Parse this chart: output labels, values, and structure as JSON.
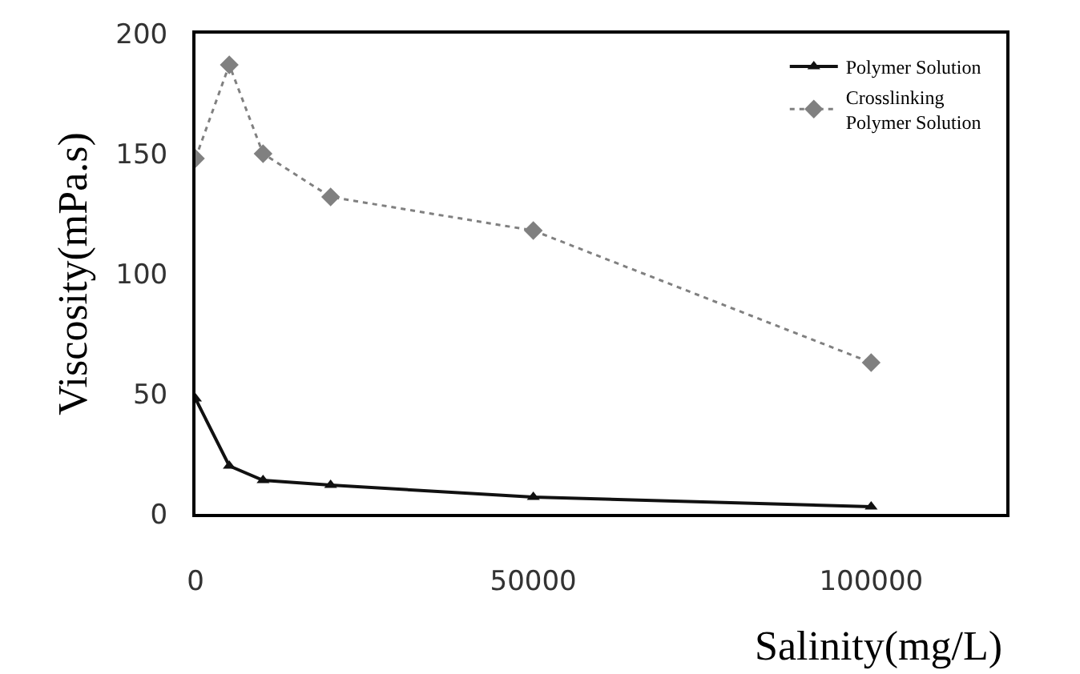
{
  "chart_data": {
    "type": "line",
    "xlabel": "Salinity(mg/L)",
    "ylabel": "Viscosity(mPa.s)",
    "xlim": [
      0,
      120000
    ],
    "xticks": [
      0,
      50000,
      100000
    ],
    "ylim": [
      0,
      200
    ],
    "yticks": [
      0,
      50,
      100,
      150,
      200
    ],
    "legend": "top right",
    "series": [
      {
        "name": "Polymer Solution",
        "color": "#111111",
        "marker": "triangle",
        "line_style": "solid",
        "x": [
          0,
          5000,
          10000,
          20000,
          50000,
          100000
        ],
        "values": [
          48,
          20,
          14,
          12,
          7,
          3
        ]
      },
      {
        "name": "Crosslinking\nPolymer Solution",
        "color": "#808080",
        "marker": "diamond",
        "line_style": "dotted",
        "x": [
          0,
          5000,
          10000,
          20000,
          50000,
          100000
        ],
        "values": [
          148,
          187,
          150,
          132,
          118,
          63
        ]
      }
    ]
  }
}
